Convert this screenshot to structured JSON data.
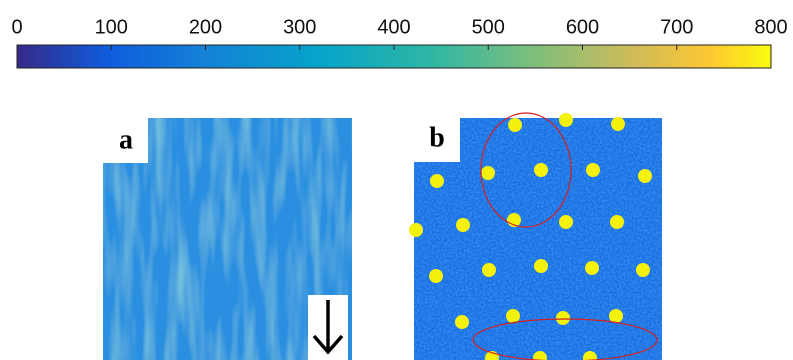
{
  "colorbar": {
    "xlim": [
      0,
      800
    ],
    "xticks": [
      0,
      100,
      200,
      300,
      400,
      500,
      600,
      700,
      800
    ]
  },
  "panels": [
    {
      "label": "a"
    },
    {
      "label": "b"
    }
  ]
}
